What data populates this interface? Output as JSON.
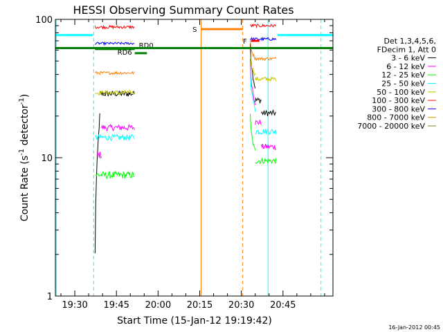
{
  "chart_data": {
    "type": "line",
    "title": "HESSI Observing Summary Count Rates",
    "xlabel": "Start Time (15-Jan-12 19:19:42)",
    "ylabel_prefix": "Count Rate (s",
    "ylabel_sup": "-1",
    "ylabel_mid": " detector",
    "ylabel_sup2": "-1",
    "ylabel_suffix": ")",
    "y_log": true,
    "ylim": [
      1,
      100
    ],
    "xlim_min": [
      1163,
      1263
    ],
    "x_ticks": [
      {
        "min": 1170,
        "label": "19:30"
      },
      {
        "min": 1185,
        "label": "19:45"
      },
      {
        "min": 1200,
        "label": "20:00"
      },
      {
        "min": 1215,
        "label": "20:15"
      },
      {
        "min": 1230,
        "label": "20:30"
      },
      {
        "min": 1245,
        "label": "20:45"
      }
    ],
    "y_ticks": [
      {
        "value": 1,
        "label": "1"
      },
      {
        "value": 10,
        "label": "10"
      },
      {
        "value": 100,
        "label": "100"
      }
    ],
    "legend_header": [
      "Det 1,3,4,5,6,",
      "FDecim 1, Att 0"
    ],
    "series": [
      {
        "name": "3 - 6 keV",
        "color": "#000000",
        "segments": [
          {
            "t0": 1177.3,
            "t1": 1179,
            "v": 2.0,
            "v1": 20,
            "noise": 0.06
          },
          {
            "t0": 1179,
            "t1": 1191.5,
            "v": 29,
            "noise": 0.05
          },
          {
            "t0": 1233.2,
            "t1": 1235,
            "v": 70,
            "v1": 32,
            "noise": 0.05
          },
          {
            "t0": 1235,
            "t1": 1237.2,
            "v": 26,
            "noise": 0.05
          },
          {
            "t0": 1237.2,
            "t1": 1242.5,
            "v": 21,
            "noise": 0.05
          }
        ]
      },
      {
        "name": "6 - 12 keV",
        "color": "#ff00ff",
        "segments": [
          {
            "t0": 1178,
            "t1": 1179.6,
            "v": 10.5,
            "noise": 0.06
          },
          {
            "t0": 1179.6,
            "t1": 1191.5,
            "v": 16.5,
            "noise": 0.05
          },
          {
            "t0": 1233.2,
            "t1": 1235,
            "v": 50,
            "v1": 25,
            "noise": 0.05
          },
          {
            "t0": 1235,
            "t1": 1237.2,
            "v": 18,
            "noise": 0.05
          },
          {
            "t0": 1237.2,
            "t1": 1242.5,
            "v": 12,
            "noise": 0.05
          }
        ]
      },
      {
        "name": "12 - 25 keV",
        "color": "#00ff00",
        "segments": [
          {
            "t0": 1177.3,
            "t1": 1191.5,
            "v": 7.5,
            "noise": 0.06
          },
          {
            "t0": 1233.2,
            "t1": 1235,
            "v": 20,
            "v1": 11,
            "noise": 0.05
          },
          {
            "t0": 1235,
            "t1": 1242.5,
            "v": 9.5,
            "noise": 0.05
          }
        ]
      },
      {
        "name": "25 - 50 keV",
        "color": "#00ffff",
        "segments": [
          {
            "t0": 1177.3,
            "t1": 1191.5,
            "v": 14,
            "noise": 0.05
          },
          {
            "t0": 1233.2,
            "t1": 1235,
            "v": 45,
            "v1": 22,
            "noise": 0.05
          },
          {
            "t0": 1235,
            "t1": 1242.5,
            "v": 15.5,
            "noise": 0.05
          }
        ]
      },
      {
        "name": "50 - 100 keV",
        "color": "#c8c800",
        "segments": [
          {
            "t0": 1177.3,
            "t1": 1191.5,
            "v": 29.5,
            "noise": 0.04
          },
          {
            "t0": 1233.2,
            "t1": 1235,
            "v": 55,
            "v1": 40,
            "noise": 0.04
          },
          {
            "t0": 1235,
            "t1": 1242.5,
            "v": 37,
            "noise": 0.04
          }
        ]
      },
      {
        "name": "100 - 300 keV",
        "color": "#ff0000",
        "segments": [
          {
            "t0": 1177.3,
            "t1": 1191.5,
            "v": 88,
            "noise": 0.025
          },
          {
            "t0": 1233.2,
            "t1": 1242.5,
            "v": 90,
            "noise": 0.025
          }
        ]
      },
      {
        "name": "300 - 800 keV",
        "color": "#0000ff",
        "segments": [
          {
            "t0": 1177.3,
            "t1": 1191.5,
            "v": 67,
            "noise": 0.02
          },
          {
            "t0": 1233.2,
            "t1": 1242.5,
            "v": 72,
            "noise": 0.025
          }
        ]
      },
      {
        "name": "800 - 7000 keV",
        "color": "#ff8000",
        "segments": [
          {
            "t0": 1177.3,
            "t1": 1191.5,
            "v": 41,
            "noise": 0.025
          },
          {
            "t0": 1233.2,
            "t1": 1235,
            "v": 70,
            "v1": 52,
            "noise": 0.03
          },
          {
            "t0": 1235,
            "t1": 1242.5,
            "v": 52,
            "noise": 0.025
          }
        ]
      },
      {
        "name": "7000 - 20000 keV",
        "color": "#808000",
        "segments": []
      }
    ],
    "attenuator_lines": [
      {
        "label": "RD0",
        "t0": 1177.3,
        "t1": 1191.6,
        "v": 61,
        "color": "#008000",
        "label_at": "end"
      },
      {
        "label": "RD6",
        "t0": 1191.6,
        "t1": 1196,
        "v": 57,
        "color": "#008000",
        "label_at": "start"
      },
      {
        "label": "",
        "t0": 1163,
        "t1": 1263,
        "v": 62,
        "color": "#008000",
        "label_at": "none"
      }
    ],
    "saa_bars": [
      {
        "label": "S",
        "t0": 1215.5,
        "t1": 1230.5,
        "v": 85,
        "color": "#ff8000"
      },
      {
        "label": "F",
        "t0": 1233.5,
        "t1": 1236.5,
        "v": 70,
        "color": "#ff0000"
      }
    ],
    "cyan_bars": [
      {
        "t0": 1163,
        "t1": 1176.5,
        "v": 77
      },
      {
        "t0": 1243,
        "t1": 1263,
        "v": 77
      }
    ],
    "vertical_lines": [
      {
        "min": 1163.3,
        "color": "#00ffff",
        "style": "solid"
      },
      {
        "min": 1176.8,
        "color": "#00ffff",
        "style": "dashed"
      },
      {
        "min": 1215.5,
        "color": "#ff8000",
        "style": "solid"
      },
      {
        "min": 1230.5,
        "color": "#ff8000",
        "style": "dashed"
      },
      {
        "min": 1239.6,
        "color": "#00ffff",
        "style": "solid"
      },
      {
        "min": 1258.7,
        "color": "#00ffff",
        "style": "dashed"
      }
    ],
    "footer_date": "16-Jan-2012 00:45"
  }
}
